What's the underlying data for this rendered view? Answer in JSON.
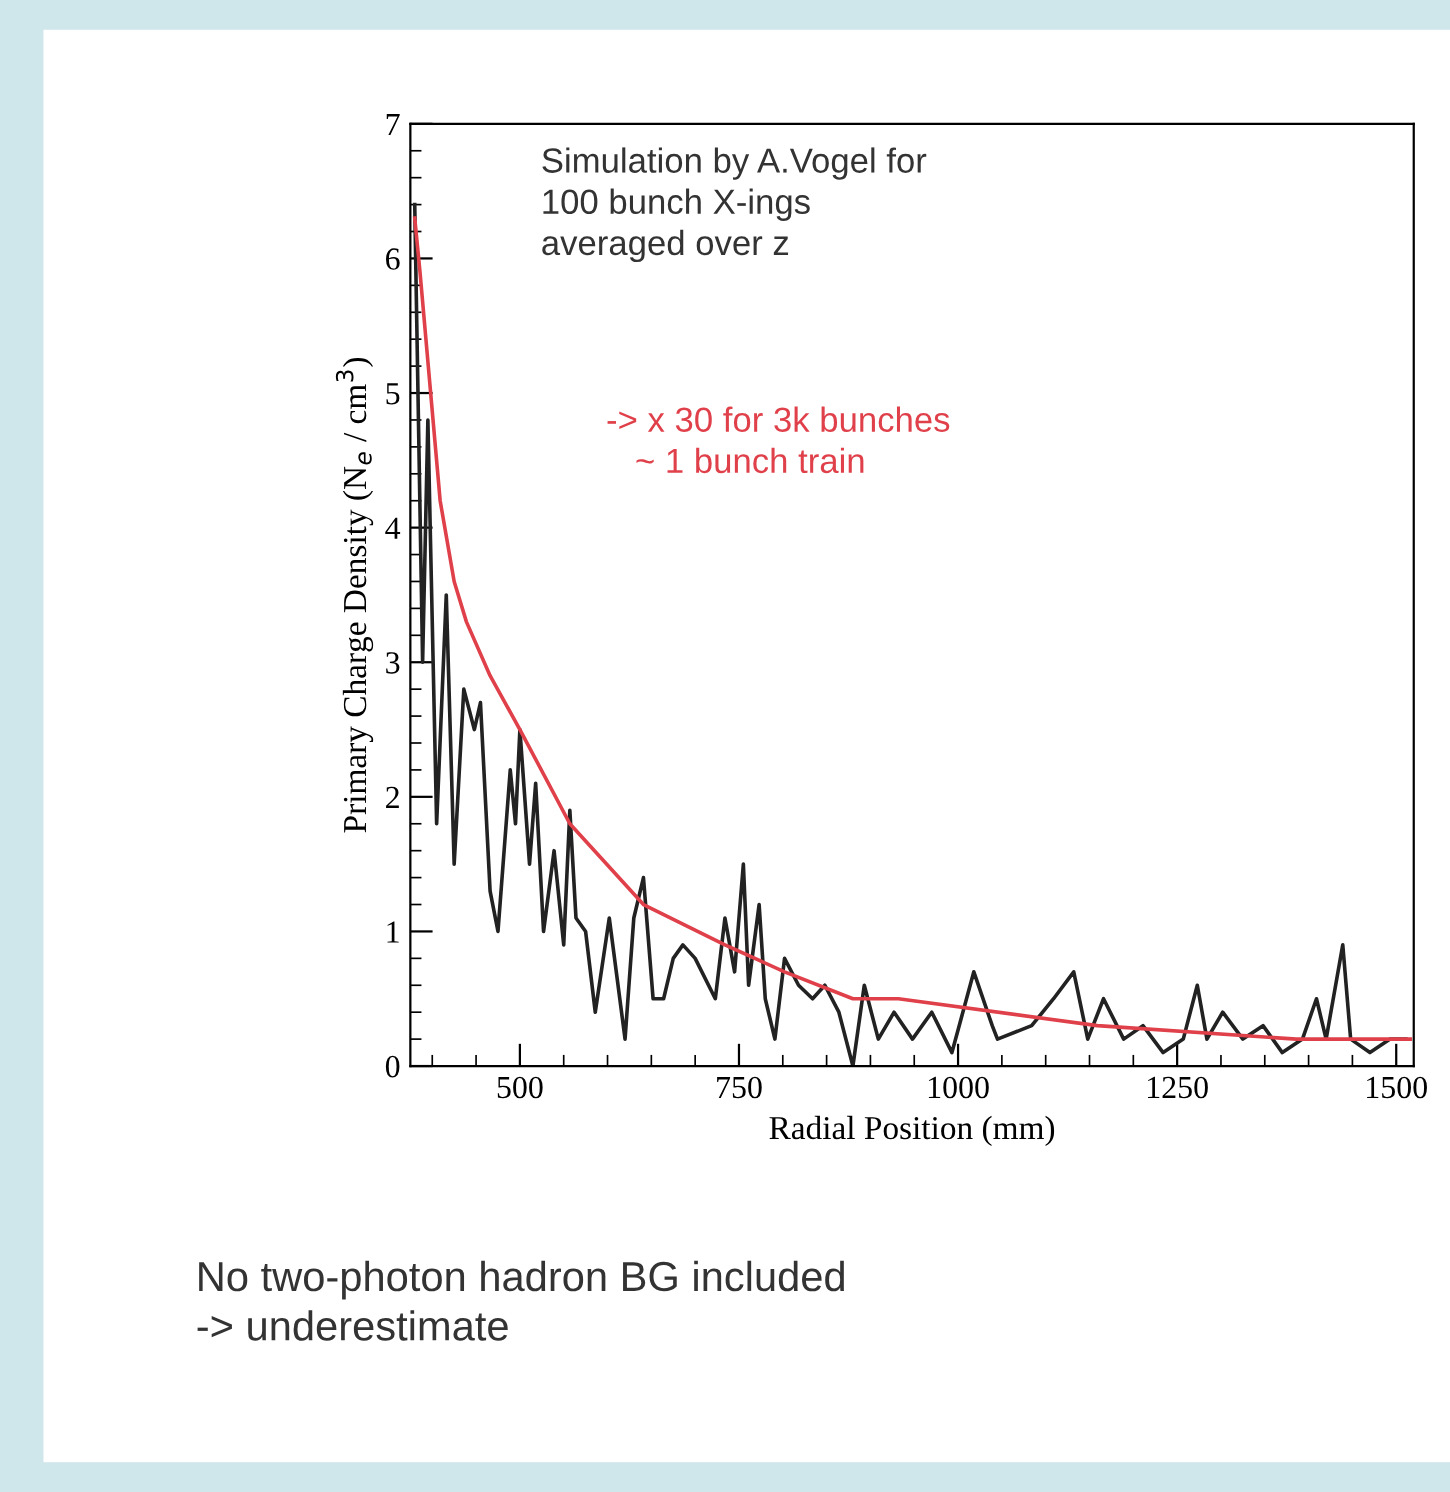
{
  "chart_data": {
    "type": "line",
    "xlabel": "Radial Position (mm)",
    "ylabel": "Primary Charge Density (N$_{e}$ / cm$^{3}$)",
    "xlim": [
      375,
      1520
    ],
    "xticks": [
      500,
      750,
      1000,
      1250,
      1500
    ],
    "ylim": [
      0,
      7
    ],
    "yticks": [
      0,
      1,
      2,
      3,
      4,
      5,
      6,
      7
    ],
    "series": [
      {
        "color": "#222222",
        "x": [
          380,
          389,
          395,
          405,
          416,
          425,
          436,
          448,
          455,
          466,
          475,
          489,
          495,
          500,
          511,
          518,
          527,
          539,
          550,
          557,
          564,
          575,
          586,
          602,
          620,
          630,
          641,
          652,
          664,
          675,
          686,
          700,
          723,
          734,
          745,
          755,
          761,
          773,
          780,
          791,
          802,
          818,
          834,
          848,
          864,
          880,
          893,
          909,
          927,
          948,
          970,
          993,
          1018,
          1039,
          1045,
          1084,
          1109,
          1132,
          1148,
          1166,
          1189,
          1211,
          1234,
          1257,
          1273,
          1284,
          1302,
          1325,
          1348,
          1370,
          1393,
          1409,
          1420,
          1439,
          1448,
          1470,
          1493,
          1511
        ],
        "values": [
          6.4,
          3.0,
          4.8,
          1.8,
          3.5,
          1.5,
          2.8,
          2.5,
          2.7,
          1.3,
          1.0,
          2.2,
          1.8,
          2.5,
          1.5,
          2.1,
          1.0,
          1.6,
          0.9,
          1.9,
          1.1,
          1.0,
          0.4,
          1.1,
          0.2,
          1.1,
          1.4,
          0.5,
          0.5,
          0.8,
          0.9,
          0.8,
          0.5,
          1.1,
          0.7,
          1.5,
          0.6,
          1.2,
          0.5,
          0.2,
          0.8,
          0.6,
          0.5,
          0.6,
          0.4,
          0.0,
          0.6,
          0.2,
          0.4,
          0.2,
          0.4,
          0.1,
          0.7,
          0.3,
          0.2,
          0.3,
          0.5,
          0.7,
          0.2,
          0.5,
          0.2,
          0.3,
          0.1,
          0.2,
          0.6,
          0.2,
          0.4,
          0.2,
          0.3,
          0.1,
          0.2,
          0.5,
          0.2,
          0.9,
          0.2,
          0.1,
          0.2,
          0.2
        ]
      },
      {
        "color": "#e0404a",
        "x": [
          380,
          386,
          409,
          425,
          439,
          466,
          500,
          557,
          641,
          734,
          802,
          880,
          932,
          1159,
          1386,
          1516
        ],
        "values": [
          6.3,
          5.9,
          4.2,
          3.6,
          3.3,
          2.9,
          2.5,
          1.8,
          1.2,
          0.9,
          0.7,
          0.5,
          0.5,
          0.3,
          0.2,
          0.2
        ]
      }
    ],
    "annotations": [
      "Simulation by A.Vogel for\n100 bunch X-ings\naveraged over z",
      "-> x 30 for 3k bunches\n   ~ 1 bunch train",
      "No two-photon hadron BG included\n-> underestimate"
    ]
  }
}
